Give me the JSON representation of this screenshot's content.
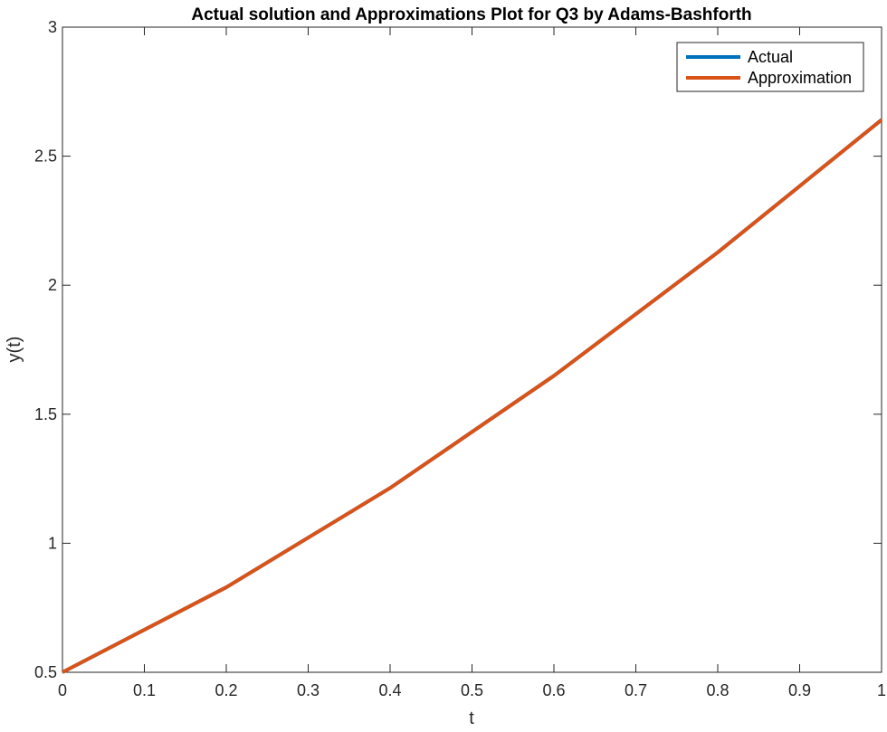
{
  "chart_data": {
    "type": "line",
    "title": "Actual solution and Approximations Plot for Q3 by Adams-Bashforth",
    "xlabel": "t",
    "ylabel": "y(t)",
    "xlim": [
      0,
      1
    ],
    "ylim": [
      0.5,
      3
    ],
    "xticks": [
      "0",
      "0.1",
      "0.2",
      "0.3",
      "0.4",
      "0.5",
      "0.6",
      "0.7",
      "0.8",
      "0.9",
      "1"
    ],
    "yticks": [
      "0.5",
      "1",
      "1.5",
      "2",
      "2.5",
      "3"
    ],
    "grid": false,
    "legend_position": "top-right",
    "x": [
      0,
      0.2,
      0.4,
      0.6,
      0.8,
      1.0
    ],
    "series": [
      {
        "name": "Actual",
        "color": "#0072BD",
        "values": [
          0.5,
          0.8293,
          1.2141,
          1.6489,
          2.1272,
          2.6409
        ]
      },
      {
        "name": "Approximation",
        "color": "#D95319",
        "values": [
          0.5,
          0.8293,
          1.2141,
          1.6489,
          2.1272,
          2.6408
        ]
      }
    ]
  }
}
